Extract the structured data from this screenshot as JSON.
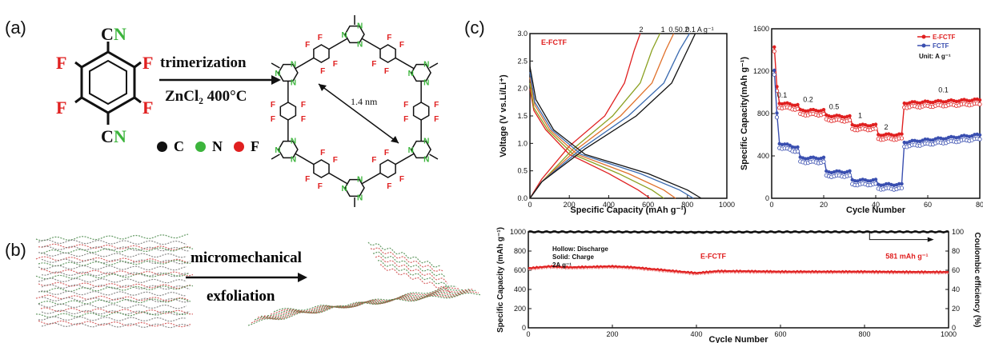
{
  "panels": {
    "a": {
      "label": "(a)",
      "monomer_atoms": {
        "C_top": "C",
        "N_top": "N",
        "C_bot": "C",
        "N_bot": "N",
        "F": "F"
      },
      "arrow_top": "trimerization",
      "arrow_bottom": "ZnCl₂ 400°C",
      "distance": "1.4 nm",
      "ring_atom_labels": {
        "N": "N",
        "F": "F"
      },
      "legend": [
        {
          "label": "C",
          "color": "#111111"
        },
        {
          "label": "N",
          "color": "#3cb43c"
        },
        {
          "label": "F",
          "color": "#e02020"
        }
      ]
    },
    "b": {
      "label": "(b)",
      "arrow_line1": "micromechanical",
      "arrow_line2": "exfoliation"
    },
    "c": {
      "label": "(c)"
    }
  },
  "colors": {
    "red": "#e02020",
    "green": "#3cb43c",
    "blue": "#3a4fb0",
    "black": "#111111"
  },
  "chart_data": [
    {
      "type": "line",
      "title": "",
      "xlabel": "Specific Capacity (mAh g⁻¹)",
      "ylabel": "Voltage (V vs.Li/Li⁺)",
      "xlim": [
        0,
        1000
      ],
      "ylim": [
        0,
        3.0
      ],
      "xticks": [
        "0",
        "200",
        "400",
        "600",
        "800",
        "1000"
      ],
      "yticks": [
        "0.0",
        "0.5",
        "1.0",
        "1.5",
        "2.0",
        "2.5",
        "3.0"
      ],
      "annotation": "E-FCTF",
      "rate_labels": [
        "2",
        "1",
        "0.5",
        "0.2",
        "0.1 A g⁻¹"
      ],
      "series": [
        {
          "name": "2",
          "color": "#e02020",
          "discharge": [
            [
              0,
              2.0
            ],
            [
              20,
              1.6
            ],
            [
              80,
              1.25
            ],
            [
              200,
              0.8
            ],
            [
              400,
              0.45
            ],
            [
              550,
              0.15
            ],
            [
              610,
              0.0
            ]
          ],
          "charge": [
            [
              0,
              0.0
            ],
            [
              60,
              0.35
            ],
            [
              200,
              0.95
            ],
            [
              380,
              1.5
            ],
            [
              480,
              2.1
            ],
            [
              530,
              2.7
            ],
            [
              560,
              3.0
            ]
          ]
        },
        {
          "name": "1",
          "color": "#8aa020",
          "discharge": [
            [
              0,
              2.1
            ],
            [
              20,
              1.65
            ],
            [
              90,
              1.25
            ],
            [
              220,
              0.8
            ],
            [
              450,
              0.45
            ],
            [
              620,
              0.15
            ],
            [
              680,
              0.0
            ]
          ],
          "charge": [
            [
              0,
              0.0
            ],
            [
              60,
              0.3
            ],
            [
              220,
              0.9
            ],
            [
              420,
              1.5
            ],
            [
              560,
              2.1
            ],
            [
              620,
              2.7
            ],
            [
              660,
              3.0
            ]
          ]
        },
        {
          "name": "0.5",
          "color": "#e0702a",
          "discharge": [
            [
              0,
              2.2
            ],
            [
              25,
              1.7
            ],
            [
              100,
              1.25
            ],
            [
              240,
              0.8
            ],
            [
              500,
              0.45
            ],
            [
              680,
              0.15
            ],
            [
              740,
              0.0
            ]
          ],
          "charge": [
            [
              0,
              0.0
            ],
            [
              60,
              0.3
            ],
            [
              240,
              0.9
            ],
            [
              460,
              1.5
            ],
            [
              620,
              2.1
            ],
            [
              690,
              2.7
            ],
            [
              730,
              3.0
            ]
          ]
        },
        {
          "name": "0.2",
          "color": "#3a6ab0",
          "discharge": [
            [
              0,
              2.3
            ],
            [
              25,
              1.75
            ],
            [
              110,
              1.25
            ],
            [
              260,
              0.8
            ],
            [
              560,
              0.45
            ],
            [
              760,
              0.15
            ],
            [
              830,
              0.0
            ]
          ],
          "charge": [
            [
              0,
              0.0
            ],
            [
              60,
              0.3
            ],
            [
              260,
              0.9
            ],
            [
              500,
              1.5
            ],
            [
              680,
              2.1
            ],
            [
              760,
              2.7
            ],
            [
              810,
              3.0
            ]
          ]
        },
        {
          "name": "0.1",
          "color": "#111111",
          "discharge": [
            [
              0,
              2.4
            ],
            [
              30,
              1.8
            ],
            [
              120,
              1.25
            ],
            [
              280,
              0.8
            ],
            [
              600,
              0.45
            ],
            [
              800,
              0.15
            ],
            [
              870,
              0.0
            ]
          ],
          "charge": [
            [
              0,
              0.0
            ],
            [
              60,
              0.3
            ],
            [
              280,
              0.9
            ],
            [
              540,
              1.5
            ],
            [
              720,
              2.1
            ],
            [
              800,
              2.7
            ],
            [
              840,
              3.0
            ]
          ]
        }
      ]
    },
    {
      "type": "scatter",
      "title": "",
      "xlabel": "Cycle Number",
      "ylabel": "Specific Capacity(mAh g⁻¹)",
      "xlim": [
        0,
        80
      ],
      "ylim": [
        0,
        1600
      ],
      "xticks": [
        "0",
        "20",
        "40",
        "60",
        "80"
      ],
      "yticks": [
        "0",
        "400",
        "800",
        "1200",
        "1600"
      ],
      "legend": [
        "E-FCTF",
        "FCTF",
        "Unit: A g⁻¹"
      ],
      "rate_labels": [
        {
          "text": "0.1",
          "x": 4,
          "y": 950
        },
        {
          "text": "0.2",
          "x": 14,
          "y": 910
        },
        {
          "text": "0.5",
          "x": 24,
          "y": 840
        },
        {
          "text": "1",
          "x": 34,
          "y": 760
        },
        {
          "text": "2",
          "x": 44,
          "y": 650
        },
        {
          "text": "0.1",
          "x": 66,
          "y": 1000
        }
      ],
      "series": [
        {
          "name": "E-FCTF",
          "color": "#e02020",
          "segments": [
            {
              "x": [
                1,
                2
              ],
              "y": [
                1420,
                1050
              ]
            },
            {
              "x": [
                3,
                10
              ],
              "y": [
                900,
                880
              ]
            },
            {
              "x": [
                11,
                20
              ],
              "y": [
                830,
                830
              ]
            },
            {
              "x": [
                21,
                30
              ],
              "y": [
                780,
                770
              ]
            },
            {
              "x": [
                31,
                40
              ],
              "y": [
                690,
                690
              ]
            },
            {
              "x": [
                41,
                50
              ],
              "y": [
                600,
                600
              ]
            },
            {
              "x": [
                51,
                80
              ],
              "y": [
                900,
                930
              ]
            }
          ]
        },
        {
          "name": "FCTF",
          "color": "#3a4fb0",
          "segments": [
            {
              "x": [
                1,
                2
              ],
              "y": [
                1200,
                800
              ]
            },
            {
              "x": [
                3,
                10
              ],
              "y": [
                520,
                480
              ]
            },
            {
              "x": [
                11,
                20
              ],
              "y": [
                380,
                380
              ]
            },
            {
              "x": [
                21,
                30
              ],
              "y": [
                250,
                250
              ]
            },
            {
              "x": [
                31,
                40
              ],
              "y": [
                170,
                170
              ]
            },
            {
              "x": [
                41,
                50
              ],
              "y": [
                130,
                130
              ]
            },
            {
              "x": [
                51,
                80
              ],
              "y": [
                530,
                600
              ]
            }
          ]
        }
      ]
    },
    {
      "type": "scatter",
      "title": "",
      "xlabel": "Cycle Number",
      "ylabel": "Specific Capacity (mAh g⁻¹)",
      "y2label": "Coulombic efficiency (%)",
      "xlim": [
        0,
        1000
      ],
      "ylim": [
        0,
        1000
      ],
      "y2lim": [
        0,
        100
      ],
      "xticks": [
        "0",
        "200",
        "400",
        "600",
        "800",
        "1000"
      ],
      "yticks": [
        "0",
        "200",
        "400",
        "600",
        "800",
        "1000"
      ],
      "y2ticks": [
        "0",
        "20",
        "40",
        "60",
        "80",
        "100"
      ],
      "legend_note": [
        "Hollow: Discharge",
        "Solid: Charge",
        "2A g⁻¹"
      ],
      "series_label": "E-FCTF",
      "end_label": "581 mAh g⁻¹",
      "capacity": {
        "x": [
          0,
          50,
          100,
          200,
          250,
          300,
          400,
          450,
          500,
          600,
          700,
          800,
          900,
          1000
        ],
        "y": [
          620,
          640,
          630,
          640,
          630,
          610,
          570,
          590,
          590,
          585,
          585,
          585,
          582,
          581
        ]
      },
      "efficiency": {
        "x": [
          0,
          200,
          400,
          600,
          800,
          1000
        ],
        "y": [
          100,
          100,
          99.5,
          100,
          100,
          100
        ]
      }
    }
  ]
}
